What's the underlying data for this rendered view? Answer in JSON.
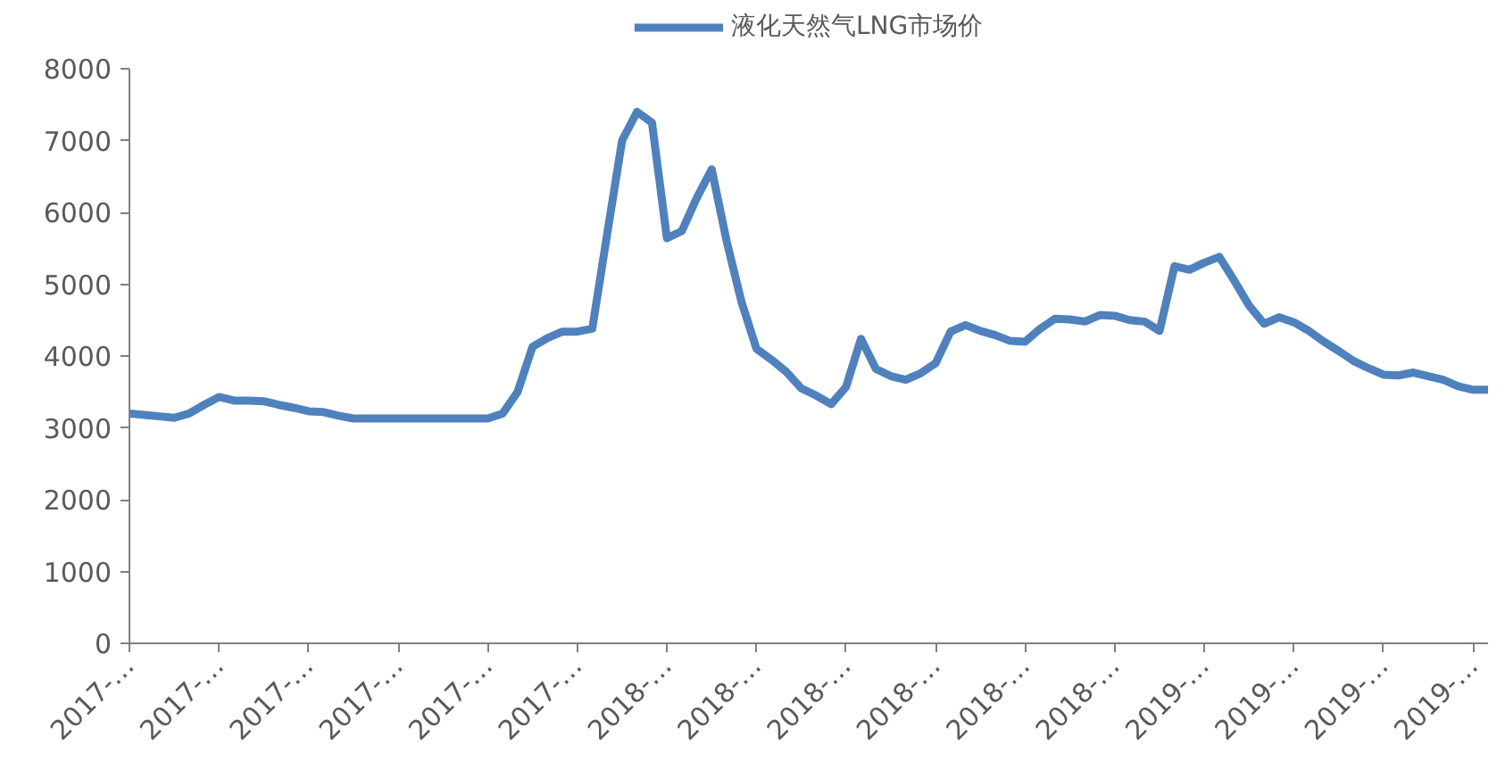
{
  "chart_data": {
    "type": "line",
    "categories": [
      "2017-…",
      null,
      null,
      null,
      null,
      null,
      "2017-…",
      null,
      null,
      null,
      null,
      null,
      "2017-…",
      null,
      null,
      null,
      null,
      null,
      "2017-…",
      null,
      null,
      null,
      null,
      null,
      "2017-…",
      null,
      null,
      null,
      null,
      null,
      "2017-…",
      null,
      null,
      null,
      null,
      null,
      "2018-…",
      null,
      null,
      null,
      null,
      null,
      "2018-…",
      null,
      null,
      null,
      null,
      null,
      "2018-…",
      null,
      null,
      null,
      null,
      null,
      "2018-…",
      null,
      null,
      null,
      null,
      null,
      "2018-…",
      null,
      null,
      null,
      null,
      null,
      "2018-…",
      null,
      null,
      null,
      null,
      null,
      "2019-…",
      null,
      null,
      null,
      null,
      null,
      "2019-…",
      null,
      null,
      null,
      null,
      null,
      "2019-…",
      null,
      null,
      null,
      null,
      null,
      "2019-…",
      null
    ],
    "series": [
      {
        "name": "液化天然气LNG市场价",
        "color": "#4f81bd",
        "values": [
          3200,
          3180,
          3160,
          3140,
          3200,
          3320,
          3430,
          3380,
          3380,
          3370,
          3320,
          3280,
          3230,
          3220,
          3170,
          3130,
          3130,
          3130,
          3130,
          3130,
          3130,
          3130,
          3130,
          3130,
          3130,
          3200,
          3500,
          4130,
          4250,
          4340,
          4340,
          4380,
          5700,
          7000,
          7400,
          7250,
          5640,
          5740,
          6200,
          6600,
          5600,
          4750,
          4100,
          3950,
          3780,
          3550,
          3450,
          3330,
          3570,
          4240,
          3820,
          3720,
          3670,
          3760,
          3900,
          4340,
          4430,
          4350,
          4290,
          4210,
          4200,
          4380,
          4520,
          4510,
          4480,
          4570,
          4560,
          4500,
          4480,
          4350,
          5250,
          5200,
          5300,
          5380,
          5050,
          4700,
          4450,
          4540,
          4470,
          4350,
          4200,
          4070,
          3930,
          3830,
          3740,
          3730,
          3770,
          3720,
          3670,
          3580,
          3530,
          3530
        ]
      }
    ],
    "ylim": [
      0,
      8000
    ],
    "yticks": [
      0,
      1000,
      2000,
      3000,
      4000,
      5000,
      6000,
      7000,
      8000
    ],
    "grid": false,
    "legend": "top",
    "marker": "none",
    "line_style": "solid"
  }
}
